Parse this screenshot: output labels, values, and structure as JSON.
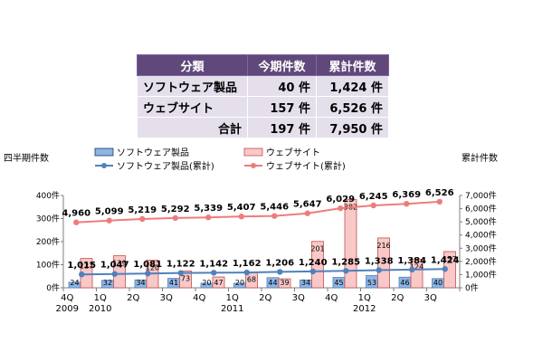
{
  "table": {
    "headers": [
      "分類",
      "今期件数",
      "累計件数"
    ],
    "rows": [
      {
        "category": "ソフトウェア製品",
        "current": "40 件",
        "cumulative": "1,424 件"
      },
      {
        "category": "ウェブサイト",
        "current": "157 件",
        "cumulative": "6,526 件"
      },
      {
        "category": "合計",
        "current": "197 件",
        "cumulative": "7,950 件"
      }
    ]
  },
  "chart_data": {
    "type": "bar",
    "categories": [
      "4Q",
      "1Q",
      "2Q",
      "3Q",
      "4Q",
      "1Q",
      "2Q",
      "3Q",
      "4Q",
      "1Q",
      "2Q",
      "3Q"
    ],
    "category_groups": [
      {
        "label": "2009",
        "index": 0
      },
      {
        "label": "2010",
        "index": 1
      },
      {
        "label": "2011",
        "index": 5
      },
      {
        "label": "2012",
        "index": 9
      }
    ],
    "ylabel": "四半期件数",
    "y2label": "累計件数",
    "ylim": [
      0,
      400
    ],
    "y2lim": [
      0,
      7000
    ],
    "yticks": [
      "0件",
      "100件",
      "200件",
      "300件",
      "400件"
    ],
    "y2ticks": [
      "0件",
      "1,000件",
      "2,000件",
      "3,000件",
      "4,000件",
      "5,000件",
      "6,000件",
      "7,000件"
    ],
    "series": [
      {
        "name": "ソフトウェア製品",
        "kind": "bar",
        "axis": "left",
        "color": "#8eb4e3",
        "values": [
          24,
          32,
          34,
          41,
          20,
          20,
          44,
          34,
          45,
          53,
          46,
          40
        ],
        "labels": [
          "24",
          "32",
          "34",
          "41",
          "20",
          "20",
          "44",
          "34",
          "45",
          "53",
          "46",
          "40"
        ]
      },
      {
        "name": "ウェブサイト",
        "kind": "bar",
        "axis": "left",
        "color": "#f9c8c8",
        "values": [
          127,
          139,
          120,
          73,
          47,
          68,
          39,
          201,
          382,
          216,
          124,
          157
        ],
        "labels": [
          "127",
          "139",
          "120",
          "73",
          "47",
          "68",
          "39",
          "201",
          "382",
          "216",
          "124",
          "157"
        ]
      },
      {
        "name": "ソフトウェア製品(累計)",
        "kind": "line",
        "axis": "right",
        "color": "#4f81bd",
        "values": [
          1015,
          1047,
          1081,
          1122,
          1142,
          1162,
          1206,
          1240,
          1285,
          1338,
          1384,
          1424
        ],
        "labels": [
          "1,015",
          "1,047",
          "1,081",
          "1,122",
          "1,142",
          "1,162",
          "1,206",
          "1,240",
          "1,285",
          "1,338",
          "1,384",
          "1,424"
        ]
      },
      {
        "name": "ウェブサイト(累計)",
        "kind": "line",
        "axis": "right",
        "color": "#ee7c7c",
        "values": [
          4960,
          5099,
          5219,
          5292,
          5339,
          5407,
          5446,
          5647,
          6029,
          6245,
          6369,
          6526
        ],
        "labels": [
          "4,960",
          "5,099",
          "5,219",
          "5,292",
          "5,339",
          "5,407",
          "5,446",
          "5,647",
          "6,029",
          "6,245",
          "6,369",
          "6,526"
        ]
      }
    ],
    "grid": false,
    "legend": "top"
  }
}
